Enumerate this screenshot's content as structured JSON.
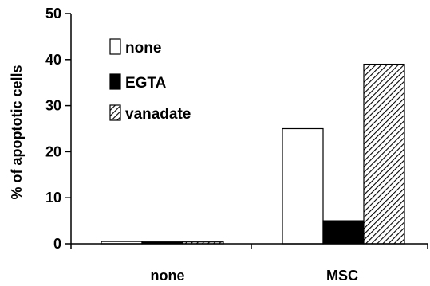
{
  "chart_data": {
    "type": "bar",
    "categories": [
      "none",
      "MSC"
    ],
    "series": [
      {
        "name": "none",
        "values": [
          0.5,
          25
        ],
        "fill": "none"
      },
      {
        "name": "EGTA",
        "values": [
          0.4,
          5
        ],
        "fill": "solid"
      },
      {
        "name": "vanadate",
        "values": [
          0.4,
          39
        ],
        "fill": "hatch"
      }
    ],
    "title": "",
    "xlabel": "",
    "ylabel": "% of apoptotic cells",
    "ylim": [
      0,
      50
    ],
    "yticks": [
      "0",
      "10",
      "20",
      "30",
      "40",
      "50"
    ],
    "grid": false,
    "legend_position": "top-left",
    "colors": {
      "bar_stroke": "#000000",
      "solid_fill": "#000000",
      "open_fill": "#ffffff"
    }
  }
}
